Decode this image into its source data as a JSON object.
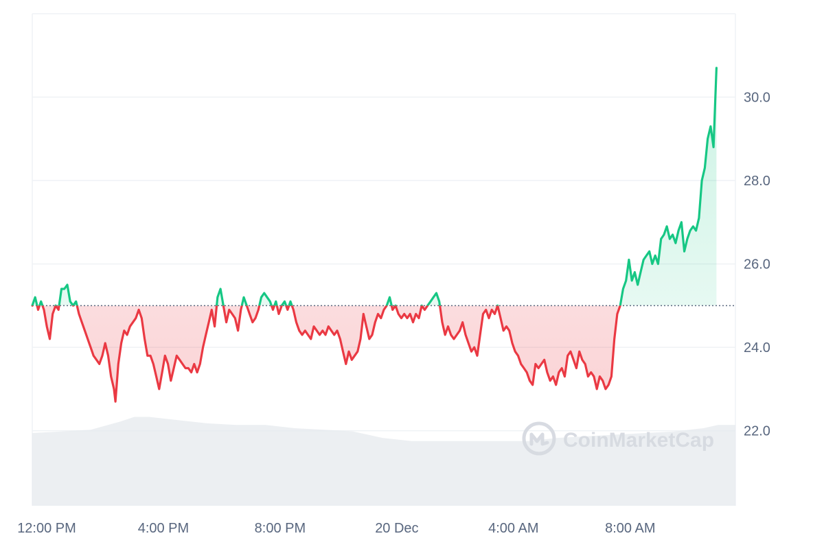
{
  "colors": {
    "up": "#16c784",
    "down": "#ea3943",
    "grid": "#eff2f5",
    "baseline": "#58667e",
    "volume": "#e6e9ee",
    "watermark": "#d6dae1",
    "axis_text": "#58667e"
  },
  "watermark": {
    "text": "CoinMarketCap",
    "icon": "coinmarketcap-logo-icon"
  },
  "chart_data": {
    "type": "line",
    "baseline_value": 25.0,
    "ylim": [
      20.2,
      32.0
    ],
    "y_ticks": [
      {
        "value": 22.0,
        "label": "22.0"
      },
      {
        "value": 24.0,
        "label": "24.0"
      },
      {
        "value": 26.0,
        "label": "26.0"
      },
      {
        "value": 28.0,
        "label": "28.0"
      },
      {
        "value": 30.0,
        "label": "30.0"
      }
    ],
    "x_ticks": [
      {
        "hour": 0,
        "label": "12:00 PM"
      },
      {
        "hour": 4,
        "label": "4:00 PM"
      },
      {
        "hour": 8,
        "label": "8:00 PM"
      },
      {
        "hour": 12,
        "label": "20 Dec"
      },
      {
        "hour": 16,
        "label": "4:00 AM"
      },
      {
        "hour": 20,
        "label": "8:00 AM"
      }
    ],
    "xlim_hours": [
      0,
      24.1
    ],
    "grid": true,
    "series": [
      {
        "points": [
          [
            0.0,
            25.0
          ],
          [
            0.1,
            25.2
          ],
          [
            0.2,
            24.9
          ],
          [
            0.3,
            25.1
          ],
          [
            0.4,
            24.9
          ],
          [
            0.5,
            24.5
          ],
          [
            0.6,
            24.2
          ],
          [
            0.7,
            24.8
          ],
          [
            0.8,
            25.0
          ],
          [
            0.9,
            24.9
          ],
          [
            1.0,
            25.4
          ],
          [
            1.1,
            25.4
          ],
          [
            1.2,
            25.5
          ],
          [
            1.3,
            25.1
          ],
          [
            1.4,
            25.0
          ],
          [
            1.5,
            25.1
          ],
          [
            1.6,
            24.8
          ],
          [
            1.7,
            24.6
          ],
          [
            1.8,
            24.4
          ],
          [
            1.9,
            24.2
          ],
          [
            2.0,
            24.0
          ],
          [
            2.1,
            23.8
          ],
          [
            2.2,
            23.7
          ],
          [
            2.3,
            23.6
          ],
          [
            2.4,
            23.8
          ],
          [
            2.5,
            24.1
          ],
          [
            2.6,
            23.8
          ],
          [
            2.7,
            23.3
          ],
          [
            2.8,
            23.0
          ],
          [
            2.85,
            22.7
          ],
          [
            2.95,
            23.6
          ],
          [
            3.05,
            24.1
          ],
          [
            3.15,
            24.4
          ],
          [
            3.25,
            24.3
          ],
          [
            3.35,
            24.5
          ],
          [
            3.45,
            24.6
          ],
          [
            3.55,
            24.7
          ],
          [
            3.65,
            24.9
          ],
          [
            3.75,
            24.7
          ],
          [
            3.85,
            24.2
          ],
          [
            3.95,
            23.8
          ],
          [
            4.05,
            23.8
          ],
          [
            4.15,
            23.6
          ],
          [
            4.25,
            23.3
          ],
          [
            4.35,
            23.0
          ],
          [
            4.45,
            23.4
          ],
          [
            4.55,
            23.8
          ],
          [
            4.65,
            23.6
          ],
          [
            4.75,
            23.2
          ],
          [
            4.85,
            23.5
          ],
          [
            4.95,
            23.8
          ],
          [
            5.05,
            23.7
          ],
          [
            5.15,
            23.6
          ],
          [
            5.25,
            23.5
          ],
          [
            5.35,
            23.5
          ],
          [
            5.45,
            23.4
          ],
          [
            5.55,
            23.6
          ],
          [
            5.65,
            23.4
          ],
          [
            5.75,
            23.6
          ],
          [
            5.85,
            24.0
          ],
          [
            5.95,
            24.3
          ],
          [
            6.05,
            24.6
          ],
          [
            6.15,
            24.9
          ],
          [
            6.25,
            24.5
          ],
          [
            6.35,
            25.2
          ],
          [
            6.45,
            25.4
          ],
          [
            6.55,
            25.0
          ],
          [
            6.65,
            24.6
          ],
          [
            6.75,
            24.9
          ],
          [
            6.85,
            24.8
          ],
          [
            6.95,
            24.7
          ],
          [
            7.05,
            24.4
          ],
          [
            7.15,
            24.9
          ],
          [
            7.25,
            25.2
          ],
          [
            7.35,
            25.0
          ],
          [
            7.45,
            24.8
          ],
          [
            7.55,
            24.6
          ],
          [
            7.65,
            24.7
          ],
          [
            7.75,
            24.9
          ],
          [
            7.85,
            25.2
          ],
          [
            7.95,
            25.3
          ],
          [
            8.05,
            25.2
          ],
          [
            8.15,
            25.1
          ],
          [
            8.25,
            24.9
          ],
          [
            8.35,
            25.1
          ],
          [
            8.45,
            24.8
          ],
          [
            8.55,
            25.0
          ],
          [
            8.65,
            25.1
          ],
          [
            8.75,
            24.9
          ],
          [
            8.85,
            25.1
          ],
          [
            8.95,
            24.9
          ],
          [
            9.05,
            24.6
          ],
          [
            9.15,
            24.4
          ],
          [
            9.25,
            24.3
          ],
          [
            9.35,
            24.4
          ],
          [
            9.45,
            24.3
          ],
          [
            9.55,
            24.2
          ],
          [
            9.65,
            24.5
          ],
          [
            9.75,
            24.4
          ],
          [
            9.85,
            24.3
          ],
          [
            9.95,
            24.4
          ],
          [
            10.05,
            24.3
          ],
          [
            10.15,
            24.5
          ],
          [
            10.25,
            24.4
          ],
          [
            10.35,
            24.3
          ],
          [
            10.45,
            24.4
          ],
          [
            10.55,
            24.2
          ],
          [
            10.65,
            23.9
          ],
          [
            10.75,
            23.6
          ],
          [
            10.85,
            23.9
          ],
          [
            10.95,
            23.7
          ],
          [
            11.05,
            23.8
          ],
          [
            11.15,
            23.9
          ],
          [
            11.25,
            24.2
          ],
          [
            11.35,
            24.8
          ],
          [
            11.45,
            24.5
          ],
          [
            11.55,
            24.2
          ],
          [
            11.65,
            24.3
          ],
          [
            11.75,
            24.6
          ],
          [
            11.85,
            24.8
          ],
          [
            11.95,
            24.7
          ],
          [
            12.05,
            24.9
          ],
          [
            12.15,
            25.0
          ],
          [
            12.25,
            25.2
          ],
          [
            12.35,
            24.9
          ],
          [
            12.45,
            25.0
          ],
          [
            12.55,
            24.8
          ],
          [
            12.65,
            24.7
          ],
          [
            12.75,
            24.8
          ],
          [
            12.85,
            24.7
          ],
          [
            12.95,
            24.8
          ],
          [
            13.05,
            24.6
          ],
          [
            13.15,
            24.8
          ],
          [
            13.25,
            24.7
          ],
          [
            13.35,
            25.0
          ],
          [
            13.45,
            24.9
          ],
          [
            13.55,
            25.0
          ],
          [
            13.65,
            25.1
          ],
          [
            13.75,
            25.2
          ],
          [
            13.85,
            25.3
          ],
          [
            13.95,
            25.1
          ],
          [
            14.05,
            24.6
          ],
          [
            14.15,
            24.3
          ],
          [
            14.25,
            24.5
          ],
          [
            14.35,
            24.3
          ],
          [
            14.45,
            24.2
          ],
          [
            14.55,
            24.3
          ],
          [
            14.65,
            24.4
          ],
          [
            14.75,
            24.6
          ],
          [
            14.85,
            24.3
          ],
          [
            14.95,
            24.1
          ],
          [
            15.05,
            23.9
          ],
          [
            15.15,
            24.0
          ],
          [
            15.25,
            23.8
          ],
          [
            15.35,
            24.3
          ],
          [
            15.45,
            24.8
          ],
          [
            15.55,
            24.9
          ],
          [
            15.65,
            24.7
          ],
          [
            15.75,
            24.9
          ],
          [
            15.85,
            24.8
          ],
          [
            15.95,
            25.0
          ],
          [
            16.05,
            24.7
          ],
          [
            16.15,
            24.4
          ],
          [
            16.25,
            24.5
          ],
          [
            16.35,
            24.4
          ],
          [
            16.45,
            24.1
          ],
          [
            16.55,
            23.9
          ],
          [
            16.65,
            23.8
          ],
          [
            16.75,
            23.6
          ],
          [
            16.85,
            23.5
          ],
          [
            16.95,
            23.4
          ],
          [
            17.05,
            23.2
          ],
          [
            17.15,
            23.1
          ],
          [
            17.25,
            23.6
          ],
          [
            17.35,
            23.5
          ],
          [
            17.45,
            23.6
          ],
          [
            17.55,
            23.7
          ],
          [
            17.65,
            23.4
          ],
          [
            17.75,
            23.2
          ],
          [
            17.85,
            23.3
          ],
          [
            17.95,
            23.1
          ],
          [
            18.05,
            23.4
          ],
          [
            18.15,
            23.5
          ],
          [
            18.25,
            23.3
          ],
          [
            18.35,
            23.8
          ],
          [
            18.45,
            23.9
          ],
          [
            18.55,
            23.7
          ],
          [
            18.65,
            23.5
          ],
          [
            18.75,
            23.9
          ],
          [
            18.85,
            23.7
          ],
          [
            18.95,
            23.6
          ],
          [
            19.05,
            23.3
          ],
          [
            19.15,
            23.4
          ],
          [
            19.25,
            23.3
          ],
          [
            19.35,
            23.0
          ],
          [
            19.45,
            23.3
          ],
          [
            19.55,
            23.2
          ],
          [
            19.65,
            23.0
          ],
          [
            19.75,
            23.1
          ],
          [
            19.85,
            23.3
          ],
          [
            19.95,
            24.2
          ],
          [
            20.05,
            24.8
          ],
          [
            20.15,
            25.0
          ],
          [
            20.25,
            25.4
          ],
          [
            20.35,
            25.6
          ],
          [
            20.45,
            26.1
          ],
          [
            20.55,
            25.6
          ],
          [
            20.65,
            25.8
          ],
          [
            20.75,
            25.5
          ],
          [
            20.85,
            25.8
          ],
          [
            20.95,
            26.1
          ],
          [
            21.05,
            26.2
          ],
          [
            21.15,
            26.3
          ],
          [
            21.25,
            26.0
          ],
          [
            21.35,
            26.2
          ],
          [
            21.45,
            26.0
          ],
          [
            21.55,
            26.6
          ],
          [
            21.65,
            26.7
          ],
          [
            21.75,
            26.9
          ],
          [
            21.85,
            26.6
          ],
          [
            21.95,
            26.7
          ],
          [
            22.05,
            26.5
          ],
          [
            22.15,
            26.8
          ],
          [
            22.25,
            27.0
          ],
          [
            22.35,
            26.3
          ],
          [
            22.45,
            26.6
          ],
          [
            22.55,
            26.8
          ],
          [
            22.65,
            26.9
          ],
          [
            22.75,
            26.8
          ],
          [
            22.85,
            27.1
          ],
          [
            22.95,
            28.0
          ],
          [
            23.05,
            28.3
          ],
          [
            23.15,
            29.0
          ],
          [
            23.25,
            29.3
          ],
          [
            23.35,
            28.8
          ],
          [
            23.45,
            30.7
          ]
        ]
      }
    ],
    "volume": [
      [
        0.0,
        0.45
      ],
      [
        1.0,
        0.46
      ],
      [
        2.0,
        0.47
      ],
      [
        3.0,
        0.52
      ],
      [
        3.5,
        0.55
      ],
      [
        4.0,
        0.55
      ],
      [
        5.0,
        0.53
      ],
      [
        6.0,
        0.51
      ],
      [
        7.0,
        0.5
      ],
      [
        8.0,
        0.5
      ],
      [
        9.0,
        0.48
      ],
      [
        10.0,
        0.47
      ],
      [
        11.0,
        0.46
      ],
      [
        12.0,
        0.42
      ],
      [
        13.0,
        0.4
      ],
      [
        14.0,
        0.4
      ],
      [
        15.0,
        0.4
      ],
      [
        16.0,
        0.4
      ],
      [
        17.0,
        0.4
      ],
      [
        18.0,
        0.42
      ],
      [
        19.0,
        0.43
      ],
      [
        20.0,
        0.44
      ],
      [
        21.0,
        0.45
      ],
      [
        22.0,
        0.46
      ],
      [
        23.0,
        0.48
      ],
      [
        23.5,
        0.5
      ]
    ]
  }
}
